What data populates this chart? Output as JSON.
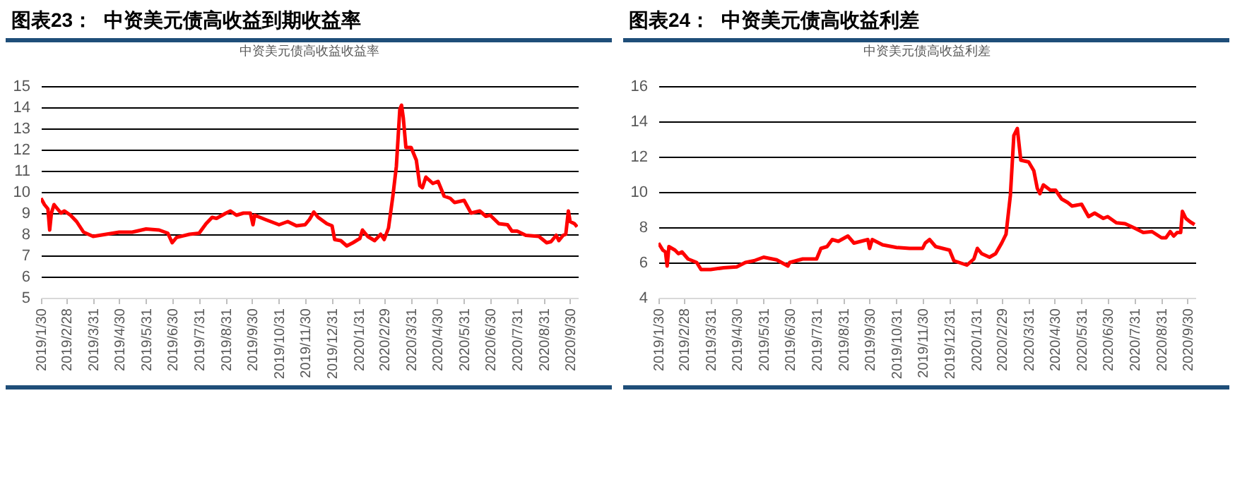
{
  "chart_data": [
    {
      "type": "line",
      "title": "图表23：  中资美元债高收益到期收益率",
      "subtitle": "中资美元债高收益收益率",
      "grid": "y",
      "legend": false,
      "marker": "none",
      "line_style": "solid",
      "ylim": [
        5,
        15
      ],
      "yticks": [
        5,
        6,
        7,
        8,
        9,
        10,
        11,
        12,
        13,
        14,
        15
      ],
      "xlim": [
        "2019-01-30",
        "2020-10-09"
      ],
      "xticks": [
        {
          "value": "2019-01-30",
          "label": "2019/1/30"
        },
        {
          "value": "2019-02-28",
          "label": "2019/2/28"
        },
        {
          "value": "2019-03-31",
          "label": "2019/3/31"
        },
        {
          "value": "2019-04-30",
          "label": "2019/4/30"
        },
        {
          "value": "2019-05-31",
          "label": "2019/5/31"
        },
        {
          "value": "2019-06-30",
          "label": "2019/6/30"
        },
        {
          "value": "2019-07-31",
          "label": "2019/7/31"
        },
        {
          "value": "2019-08-31",
          "label": "2019/8/31"
        },
        {
          "value": "2019-09-30",
          "label": "2019/9/30"
        },
        {
          "value": "2019-10-31",
          "label": "2019/10/31"
        },
        {
          "value": "2019-11-30",
          "label": "2019/11/30"
        },
        {
          "value": "2019-12-31",
          "label": "2019/12/31"
        },
        {
          "value": "2020-01-31",
          "label": "2020/1/31"
        },
        {
          "value": "2020-02-29",
          "label": "2020/2/29"
        },
        {
          "value": "2020-03-31",
          "label": "2020/3/31"
        },
        {
          "value": "2020-04-30",
          "label": "2020/4/30"
        },
        {
          "value": "2020-05-31",
          "label": "2020/5/31"
        },
        {
          "value": "2020-06-30",
          "label": "2020/6/30"
        },
        {
          "value": "2020-07-31",
          "label": "2020/7/31"
        },
        {
          "value": "2020-08-31",
          "label": "2020/8/31"
        },
        {
          "value": "2020-09-30",
          "label": "2020/9/30"
        }
      ],
      "x": [
        "2019-01-30",
        "2019-02-03",
        "2019-02-07",
        "2019-02-09",
        "2019-02-11",
        "2019-02-14",
        "2019-02-18",
        "2019-02-22",
        "2019-02-26",
        "2019-03-05",
        "2019-03-12",
        "2019-03-20",
        "2019-03-31",
        "2019-04-15",
        "2019-04-30",
        "2019-05-15",
        "2019-05-31",
        "2019-06-15",
        "2019-06-25",
        "2019-06-30",
        "2019-07-05",
        "2019-07-20",
        "2019-07-31",
        "2019-08-08",
        "2019-08-15",
        "2019-08-20",
        "2019-08-31",
        "2019-09-05",
        "2019-09-12",
        "2019-09-20",
        "2019-09-28",
        "2019-10-01",
        "2019-10-03",
        "2019-10-15",
        "2019-10-31",
        "2019-11-10",
        "2019-11-20",
        "2019-11-30",
        "2019-12-05",
        "2019-12-10",
        "2019-12-15",
        "2019-12-25",
        "2019-12-31",
        "2020-01-03",
        "2020-01-10",
        "2020-01-17",
        "2020-01-24",
        "2020-02-01",
        "2020-02-04",
        "2020-02-10",
        "2020-02-18",
        "2020-02-25",
        "2020-02-29",
        "2020-03-05",
        "2020-03-10",
        "2020-03-14",
        "2020-03-18",
        "2020-03-20",
        "2020-03-22",
        "2020-03-25",
        "2020-03-31",
        "2020-04-06",
        "2020-04-10",
        "2020-04-13",
        "2020-04-17",
        "2020-04-25",
        "2020-05-01",
        "2020-05-08",
        "2020-05-15",
        "2020-05-20",
        "2020-05-31",
        "2020-06-08",
        "2020-06-18",
        "2020-06-25",
        "2020-06-30",
        "2020-07-10",
        "2020-07-20",
        "2020-07-25",
        "2020-07-31",
        "2020-08-10",
        "2020-08-25",
        "2020-09-03",
        "2020-09-08",
        "2020-09-14",
        "2020-09-17",
        "2020-09-22",
        "2020-09-25",
        "2020-09-28",
        "2020-09-30",
        "2020-10-05",
        "2020-10-08"
      ],
      "series": [
        {
          "color": "#ff0000",
          "values": [
            9.7,
            9.4,
            9.2,
            8.2,
            9.0,
            9.4,
            9.2,
            9.0,
            9.1,
            8.9,
            8.6,
            8.1,
            7.9,
            8.0,
            8.1,
            8.1,
            8.25,
            8.2,
            8.05,
            7.6,
            7.85,
            8.0,
            8.05,
            8.5,
            8.8,
            8.75,
            9.0,
            9.1,
            8.9,
            9.0,
            9.0,
            8.45,
            8.9,
            8.7,
            8.45,
            8.6,
            8.4,
            8.45,
            8.7,
            9.05,
            8.8,
            8.5,
            8.4,
            7.75,
            7.7,
            7.45,
            7.6,
            7.8,
            8.2,
            7.9,
            7.7,
            8.0,
            7.75,
            8.3,
            9.8,
            11.2,
            13.9,
            14.1,
            13.5,
            12.1,
            12.1,
            11.5,
            10.3,
            10.2,
            10.7,
            10.4,
            10.5,
            9.8,
            9.7,
            9.5,
            9.6,
            9.0,
            9.1,
            8.85,
            8.9,
            8.5,
            8.45,
            8.15,
            8.15,
            7.95,
            7.9,
            7.6,
            7.65,
            7.95,
            7.7,
            7.95,
            8.0,
            9.1,
            8.6,
            8.5,
            8.35
          ]
        }
      ]
    },
    {
      "type": "line",
      "title": "图表24：  中资美元债高收益利差",
      "subtitle": "中资美元债高收益利差",
      "grid": "y",
      "legend": false,
      "marker": "none",
      "line_style": "solid",
      "ylim": [
        4,
        16
      ],
      "yticks": [
        4,
        6,
        8,
        10,
        12,
        14,
        16
      ],
      "xlim": [
        "2019-01-30",
        "2020-10-09"
      ],
      "xticks": [
        {
          "value": "2019-01-30",
          "label": "2019/1/30"
        },
        {
          "value": "2019-02-28",
          "label": "2019/2/28"
        },
        {
          "value": "2019-03-31",
          "label": "2019/3/31"
        },
        {
          "value": "2019-04-30",
          "label": "2019/4/30"
        },
        {
          "value": "2019-05-31",
          "label": "2019/5/31"
        },
        {
          "value": "2019-06-30",
          "label": "2019/6/30"
        },
        {
          "value": "2019-07-31",
          "label": "2019/7/31"
        },
        {
          "value": "2019-08-31",
          "label": "2019/8/31"
        },
        {
          "value": "2019-09-30",
          "label": "2019/9/30"
        },
        {
          "value": "2019-10-31",
          "label": "2019/10/31"
        },
        {
          "value": "2019-11-30",
          "label": "2019/11/30"
        },
        {
          "value": "2019-12-31",
          "label": "2019/12/31"
        },
        {
          "value": "2020-01-31",
          "label": "2020/1/31"
        },
        {
          "value": "2020-02-29",
          "label": "2020/2/29"
        },
        {
          "value": "2020-03-31",
          "label": "2020/3/31"
        },
        {
          "value": "2020-04-30",
          "label": "2020/4/30"
        },
        {
          "value": "2020-05-31",
          "label": "2020/5/31"
        },
        {
          "value": "2020-06-30",
          "label": "2020/6/30"
        },
        {
          "value": "2020-07-31",
          "label": "2020/7/31"
        },
        {
          "value": "2020-08-31",
          "label": "2020/8/31"
        },
        {
          "value": "2020-09-30",
          "label": "2020/9/30"
        }
      ],
      "x": [
        "2019-01-30",
        "2019-02-04",
        "2019-02-07",
        "2019-02-09",
        "2019-02-11",
        "2019-02-18",
        "2019-02-22",
        "2019-02-26",
        "2019-03-05",
        "2019-03-15",
        "2019-03-20",
        "2019-03-31",
        "2019-04-15",
        "2019-04-30",
        "2019-05-10",
        "2019-05-20",
        "2019-05-31",
        "2019-06-15",
        "2019-06-28",
        "2019-06-30",
        "2019-07-15",
        "2019-07-31",
        "2019-08-05",
        "2019-08-12",
        "2019-08-18",
        "2019-08-25",
        "2019-09-05",
        "2019-09-12",
        "2019-09-28",
        "2019-09-30",
        "2019-10-03",
        "2019-10-15",
        "2019-10-31",
        "2019-11-15",
        "2019-11-30",
        "2019-12-03",
        "2019-12-08",
        "2019-12-15",
        "2019-12-31",
        "2020-01-05",
        "2020-01-20",
        "2020-01-28",
        "2020-02-01",
        "2020-02-06",
        "2020-02-15",
        "2020-02-22",
        "2020-02-29",
        "2020-03-05",
        "2020-03-10",
        "2020-03-14",
        "2020-03-18",
        "2020-03-22",
        "2020-03-31",
        "2020-04-06",
        "2020-04-10",
        "2020-04-13",
        "2020-04-17",
        "2020-04-25",
        "2020-05-01",
        "2020-05-08",
        "2020-05-15",
        "2020-05-20",
        "2020-05-31",
        "2020-06-08",
        "2020-06-15",
        "2020-06-25",
        "2020-06-30",
        "2020-07-10",
        "2020-07-20",
        "2020-07-31",
        "2020-08-10",
        "2020-08-20",
        "2020-08-31",
        "2020-09-05",
        "2020-09-10",
        "2020-09-14",
        "2020-09-18",
        "2020-09-22",
        "2020-09-24",
        "2020-09-28",
        "2020-10-03",
        "2020-10-08"
      ],
      "series": [
        {
          "color": "#ff0000",
          "values": [
            7.1,
            6.7,
            6.6,
            5.8,
            6.9,
            6.7,
            6.5,
            6.6,
            6.2,
            6.0,
            5.6,
            5.6,
            5.7,
            5.75,
            6.0,
            6.1,
            6.3,
            6.15,
            5.8,
            6.0,
            6.2,
            6.2,
            6.8,
            6.9,
            7.3,
            7.2,
            7.5,
            7.1,
            7.3,
            6.8,
            7.3,
            7.0,
            6.85,
            6.8,
            6.8,
            7.1,
            7.3,
            6.9,
            6.7,
            6.1,
            5.85,
            6.2,
            6.8,
            6.5,
            6.3,
            6.5,
            7.1,
            7.6,
            9.8,
            13.2,
            13.6,
            11.8,
            11.7,
            11.2,
            10.2,
            9.9,
            10.4,
            10.1,
            10.1,
            9.6,
            9.4,
            9.2,
            9.3,
            8.6,
            8.8,
            8.5,
            8.6,
            8.25,
            8.2,
            7.95,
            7.7,
            7.75,
            7.4,
            7.4,
            7.75,
            7.5,
            7.7,
            7.7,
            8.9,
            8.5,
            8.3,
            8.15
          ]
        }
      ]
    }
  ]
}
